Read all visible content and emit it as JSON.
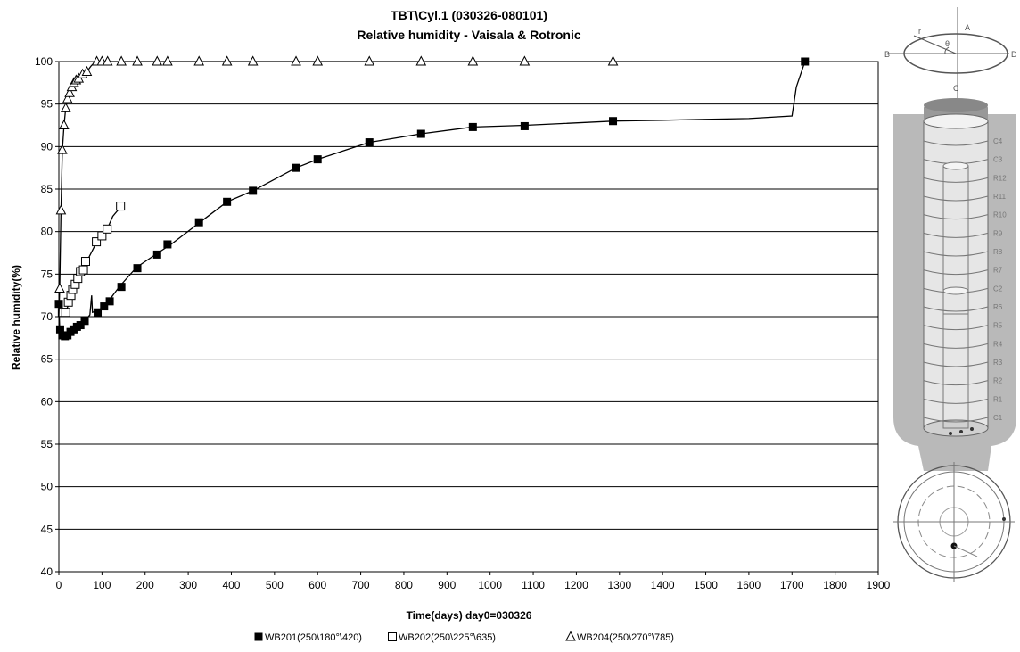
{
  "chart_data": {
    "type": "line",
    "title": "TBT\\Cyl.1    (030326-080101)",
    "subtitle": "Relative humidity - Vaisala &  Rotronic",
    "xlabel": "Time(days) day0=030326",
    "ylabel": "Relative humidity(%)",
    "xlim": [
      0,
      1900
    ],
    "ylim": [
      40,
      100
    ],
    "xticks": [
      "0",
      "100",
      "200",
      "300",
      "400",
      "500",
      "600",
      "700",
      "800",
      "900",
      "1000",
      "1100",
      "1200",
      "1300",
      "1400",
      "1500",
      "1600",
      "1700",
      "1800",
      "1900"
    ],
    "yticks": [
      "40",
      "45",
      "50",
      "55",
      "60",
      "65",
      "70",
      "75",
      "80",
      "85",
      "90",
      "95",
      "100"
    ],
    "grid": "horizontal",
    "legend_position": "bottom",
    "series": [
      {
        "name": "WB201(250\\180°\\420)",
        "marker": "filled-square",
        "line": [
          [
            0,
            71.5
          ],
          [
            2,
            68.5
          ],
          [
            6,
            68
          ],
          [
            12,
            67.7
          ],
          [
            20,
            67.8
          ],
          [
            30,
            68.2
          ],
          [
            45,
            68.8
          ],
          [
            60,
            69.5
          ],
          [
            72,
            70.2
          ],
          [
            76,
            72.5
          ],
          [
            78,
            70.5
          ],
          [
            90,
            70.7
          ],
          [
            105,
            71.2
          ],
          [
            115,
            71.8
          ],
          [
            140,
            73.5
          ],
          [
            180,
            75.8
          ],
          [
            230,
            77.5
          ],
          [
            260,
            78.5
          ],
          [
            330,
            81.2
          ],
          [
            390,
            83.5
          ],
          [
            450,
            84.8
          ],
          [
            550,
            87.5
          ],
          [
            600,
            88.5
          ],
          [
            720,
            90.5
          ],
          [
            840,
            91.5
          ],
          [
            960,
            92.3
          ],
          [
            1080,
            92.5
          ],
          [
            1290,
            93
          ],
          [
            1400,
            93.1
          ],
          [
            1500,
            93.2
          ],
          [
            1600,
            93.3
          ],
          [
            1700,
            93.6
          ],
          [
            1710,
            97
          ],
          [
            1730,
            100
          ]
        ],
        "points": [
          [
            0,
            71.5
          ],
          [
            3,
            68.5
          ],
          [
            8,
            67.8
          ],
          [
            14,
            67.7
          ],
          [
            20,
            67.8
          ],
          [
            27,
            68.2
          ],
          [
            34,
            68.5
          ],
          [
            42,
            68.8
          ],
          [
            50,
            69
          ],
          [
            60,
            69.5
          ],
          [
            90,
            70.5
          ],
          [
            105,
            71.2
          ],
          [
            118,
            71.8
          ],
          [
            145,
            73.5
          ],
          [
            182,
            75.7
          ],
          [
            228,
            77.3
          ],
          [
            252,
            78.5
          ],
          [
            325,
            81.1
          ],
          [
            390,
            83.5
          ],
          [
            450,
            84.8
          ],
          [
            550,
            87.5
          ],
          [
            600,
            88.5
          ],
          [
            720,
            90.5
          ],
          [
            840,
            91.5
          ],
          [
            960,
            92.3
          ],
          [
            1080,
            92.4
          ],
          [
            1285,
            93
          ],
          [
            1730,
            100
          ]
        ]
      },
      {
        "name": "WB202(250\\225°\\635)",
        "marker": "open-square",
        "line": [
          [
            0,
            71
          ],
          [
            8,
            70.5
          ],
          [
            15,
            70.5
          ],
          [
            25,
            71.7
          ],
          [
            30,
            73
          ],
          [
            38,
            74
          ],
          [
            45,
            74.5
          ],
          [
            52,
            75.3
          ],
          [
            58,
            75.8
          ],
          [
            65,
            76.5
          ],
          [
            80,
            78
          ],
          [
            90,
            79
          ],
          [
            100,
            79.5
          ],
          [
            112,
            80.3
          ],
          [
            125,
            81.8
          ],
          [
            145,
            83
          ]
        ],
        "points": [
          [
            8,
            70.5
          ],
          [
            16,
            70.5
          ],
          [
            22,
            71.7
          ],
          [
            28,
            72.5
          ],
          [
            32,
            73.2
          ],
          [
            38,
            73.8
          ],
          [
            44,
            74.5
          ],
          [
            50,
            75.3
          ],
          [
            57,
            75.5
          ],
          [
            62,
            76.5
          ],
          [
            87,
            78.8
          ],
          [
            100,
            79.5
          ],
          [
            112,
            80.3
          ],
          [
            143,
            83
          ]
        ]
      },
      {
        "name": "WB204(250\\270°\\785)",
        "marker": "open-triangle",
        "line": [
          [
            0,
            70
          ],
          [
            2,
            73.5
          ],
          [
            5,
            82.5
          ],
          [
            8,
            89.5
          ],
          [
            12,
            92.5
          ],
          [
            16,
            94.5
          ],
          [
            20,
            95.5
          ],
          [
            25,
            96.3
          ],
          [
            30,
            97
          ],
          [
            35,
            97.5
          ],
          [
            40,
            97.8
          ],
          [
            45,
            98
          ],
          [
            55,
            98.5
          ],
          [
            65,
            98.8
          ],
          [
            75,
            99.5
          ],
          [
            85,
            100
          ],
          [
            100,
            100
          ],
          [
            200,
            100
          ],
          [
            400,
            100
          ],
          [
            800,
            100
          ],
          [
            1300,
            100
          ],
          [
            1730,
            100
          ]
        ],
        "points": [
          [
            2,
            73.3
          ],
          [
            5,
            82.5
          ],
          [
            8,
            89.6
          ],
          [
            12,
            92.5
          ],
          [
            16,
            94.5
          ],
          [
            20,
            95.6
          ],
          [
            25,
            96.3
          ],
          [
            30,
            97
          ],
          [
            35,
            97.5
          ],
          [
            40,
            97.8
          ],
          [
            46,
            98
          ],
          [
            55,
            98.5
          ],
          [
            65,
            98.8
          ],
          [
            88,
            100
          ],
          [
            100,
            100
          ],
          [
            113,
            100
          ],
          [
            145,
            100
          ],
          [
            182,
            100
          ],
          [
            228,
            100
          ],
          [
            252,
            100
          ],
          [
            325,
            100
          ],
          [
            390,
            100
          ],
          [
            450,
            100
          ],
          [
            550,
            100
          ],
          [
            600,
            100
          ],
          [
            720,
            100
          ],
          [
            840,
            100
          ],
          [
            960,
            100
          ],
          [
            1080,
            100
          ],
          [
            1285,
            100
          ]
        ]
      }
    ]
  },
  "diagram": {
    "top_letters": [
      "A",
      "B",
      "C",
      "D",
      "r",
      "θ"
    ],
    "layer_labels": [
      "C4",
      "C3",
      "R12",
      "R11",
      "R10",
      "R9",
      "R8",
      "R7",
      "C2",
      "R6",
      "R5",
      "R4",
      "R3",
      "R2",
      "R1",
      "C1"
    ]
  }
}
